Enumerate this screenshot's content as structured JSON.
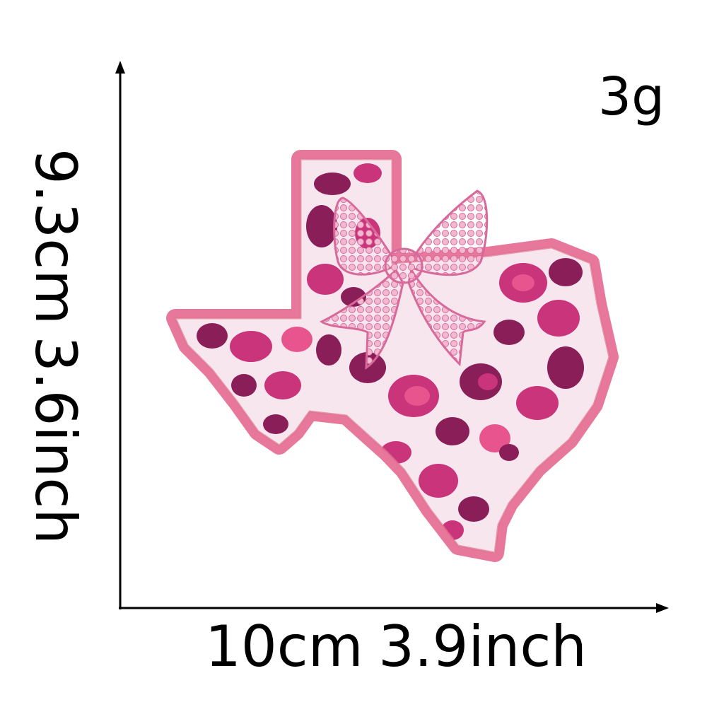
{
  "weight_label": "3g",
  "height": {
    "cm": "9.3cm",
    "inch": "3.6inch"
  },
  "width": {
    "cm": "10cm",
    "inch": "3.9inch"
  },
  "colors": {
    "border": "#f08aa8",
    "border_dark": "#e0708f",
    "fur": "#f8e6ee",
    "spot_dark": "#8a1e58",
    "spot_mid": "#c9347a",
    "spot_pink": "#e8558e",
    "bow": "#e38fb3",
    "sequin": "#f3b7d0"
  }
}
